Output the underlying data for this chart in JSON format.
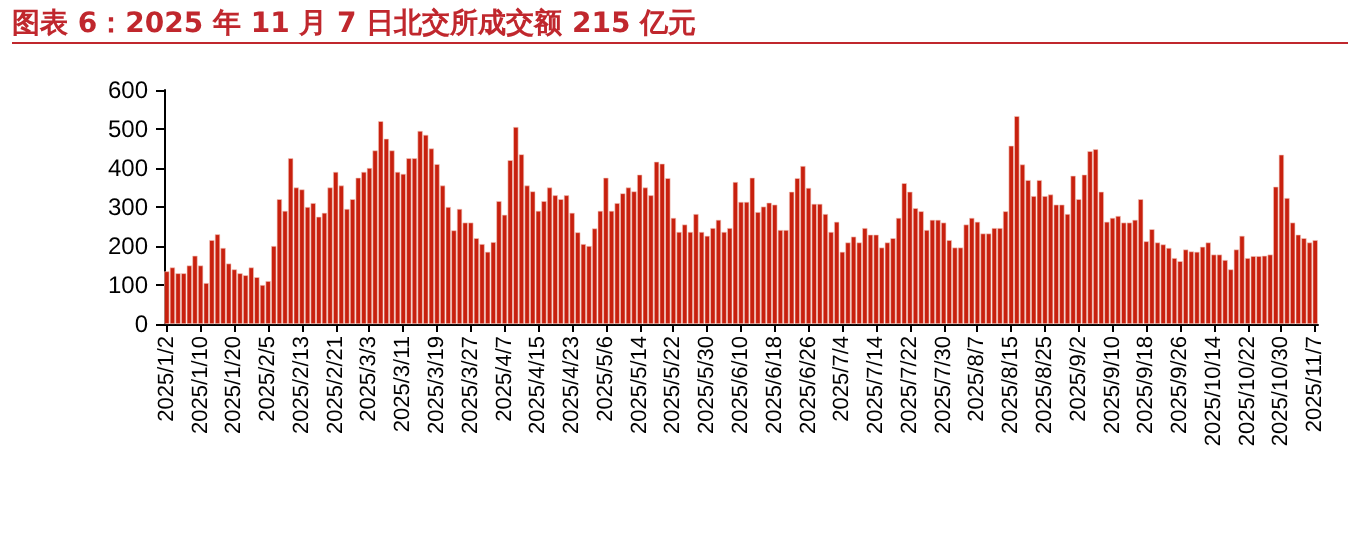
{
  "chart_data": {
    "type": "bar",
    "title": "图表 6：2025 年 11 月 7 日北交所成交额 215 亿元",
    "categories": [
      "2025/1/2",
      null,
      null,
      null,
      null,
      null,
      "2025/1/10",
      null,
      null,
      null,
      null,
      null,
      "2025/1/20",
      null,
      null,
      null,
      null,
      null,
      "2025/2/5",
      null,
      null,
      null,
      null,
      null,
      "2025/2/13",
      null,
      null,
      null,
      null,
      null,
      "2025/2/21",
      null,
      null,
      null,
      null,
      null,
      "2025/3/3",
      null,
      null,
      null,
      null,
      null,
      "2025/3/11",
      null,
      null,
      null,
      null,
      null,
      "2025/3/19",
      null,
      null,
      null,
      null,
      null,
      "2025/3/27",
      null,
      null,
      null,
      null,
      null,
      "2025/4/7",
      null,
      null,
      null,
      null,
      null,
      "2025/4/15",
      null,
      null,
      null,
      null,
      null,
      "2025/4/23",
      null,
      null,
      null,
      null,
      null,
      "2025/5/6",
      null,
      null,
      null,
      null,
      null,
      "2025/5/14",
      null,
      null,
      null,
      null,
      null,
      "2025/5/22",
      null,
      null,
      null,
      null,
      null,
      "2025/5/30",
      null,
      null,
      null,
      null,
      null,
      "2025/6/10",
      null,
      null,
      null,
      null,
      null,
      "2025/6/18",
      null,
      null,
      null,
      null,
      null,
      "2025/6/26",
      null,
      null,
      null,
      null,
      null,
      "2025/7/4",
      null,
      null,
      null,
      null,
      null,
      "2025/7/14",
      null,
      null,
      null,
      null,
      null,
      "2025/7/22",
      null,
      null,
      null,
      null,
      null,
      "2025/7/30",
      null,
      null,
      null,
      null,
      null,
      "2025/8/7",
      null,
      null,
      null,
      null,
      null,
      "2025/8/15",
      null,
      null,
      null,
      null,
      null,
      "2025/8/25",
      null,
      null,
      null,
      null,
      null,
      "2025/9/2",
      null,
      null,
      null,
      null,
      null,
      "2025/9/10",
      null,
      null,
      null,
      null,
      null,
      "2025/9/18",
      null,
      null,
      null,
      null,
      null,
      "2025/9/26",
      null,
      null,
      null,
      null,
      null,
      "2025/10/14",
      null,
      null,
      null,
      null,
      null,
      "2025/10/22",
      null,
      null,
      null,
      null,
      null,
      "2025/10/30",
      null,
      null,
      null,
      null,
      null,
      "2025/11/7"
    ],
    "values": [
      135,
      145,
      130,
      130,
      150,
      175,
      150,
      105,
      215,
      230,
      195,
      155,
      140,
      130,
      125,
      145,
      120,
      100,
      110,
      200,
      320,
      290,
      425,
      350,
      345,
      300,
      310,
      275,
      285,
      350,
      390,
      355,
      295,
      320,
      375,
      390,
      400,
      445,
      520,
      475,
      445,
      390,
      385,
      425,
      425,
      495,
      485,
      450,
      410,
      355,
      300,
      240,
      295,
      260,
      260,
      220,
      205,
      185,
      210,
      315,
      280,
      420,
      505,
      435,
      355,
      340,
      290,
      315,
      350,
      330,
      320,
      330,
      285,
      235,
      205,
      200,
      245,
      290,
      375,
      290,
      310,
      335,
      350,
      340,
      383,
      350,
      330,
      416,
      411,
      374,
      272,
      236,
      255,
      236,
      282,
      236,
      226,
      246,
      267,
      236,
      246,
      364,
      313,
      313,
      375,
      287,
      301,
      311,
      306,
      241,
      241,
      339,
      374,
      405,
      349,
      308,
      308,
      282,
      236,
      262,
      185,
      209,
      224,
      209,
      246,
      229,
      229,
      196,
      209,
      220,
      272,
      361,
      339,
      297,
      289,
      241,
      267,
      267,
      260,
      215,
      196,
      196,
      255,
      272,
      262,
      232,
      232,
      246,
      246,
      289,
      457,
      533,
      409,
      369,
      328,
      369,
      328,
      332,
      306,
      306,
      282,
      380,
      320,
      383,
      443,
      448,
      339,
      262,
      272,
      277,
      260,
      260,
      267,
      320,
      212,
      243,
      209,
      204,
      195,
      169,
      161,
      191,
      186,
      185,
      198,
      209,
      178,
      178,
      164,
      140,
      191,
      226,
      169,
      174,
      174,
      175,
      178,
      352,
      434,
      323,
      260,
      229,
      220,
      209,
      215
    ],
    "color": "#c8200e",
    "ylim": [
      0,
      600
    ],
    "yticks": [
      0,
      100,
      200,
      300,
      400,
      500,
      600
    ],
    "grid": false
  }
}
